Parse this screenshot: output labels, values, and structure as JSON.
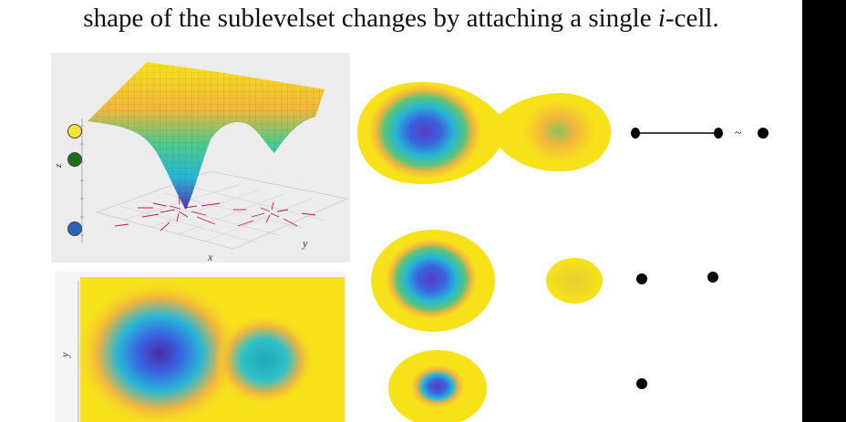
{
  "caption": {
    "text_before": "shape of the sublevelset changes by attaching a single ",
    "text_italic": "i",
    "text_after": "-cell."
  },
  "surface_plot": {
    "axis_x": "x",
    "axis_y": "y",
    "axis_z": "z"
  },
  "contour_plot": {
    "axis_y": "y"
  },
  "level_markers": [
    {
      "color": "#f2e23a"
    },
    {
      "color": "#1d6e1d"
    },
    {
      "color": "#2a63b8"
    }
  ],
  "homotopy_symbol": "~",
  "colors": {
    "yellow": "#f7e21a",
    "orange": "#f2b63d",
    "green": "#3fbf8f",
    "cyan": "#27b6d6",
    "blue": "#3a62e0",
    "violet": "#5a2fb0",
    "background_bar": "#000000"
  }
}
